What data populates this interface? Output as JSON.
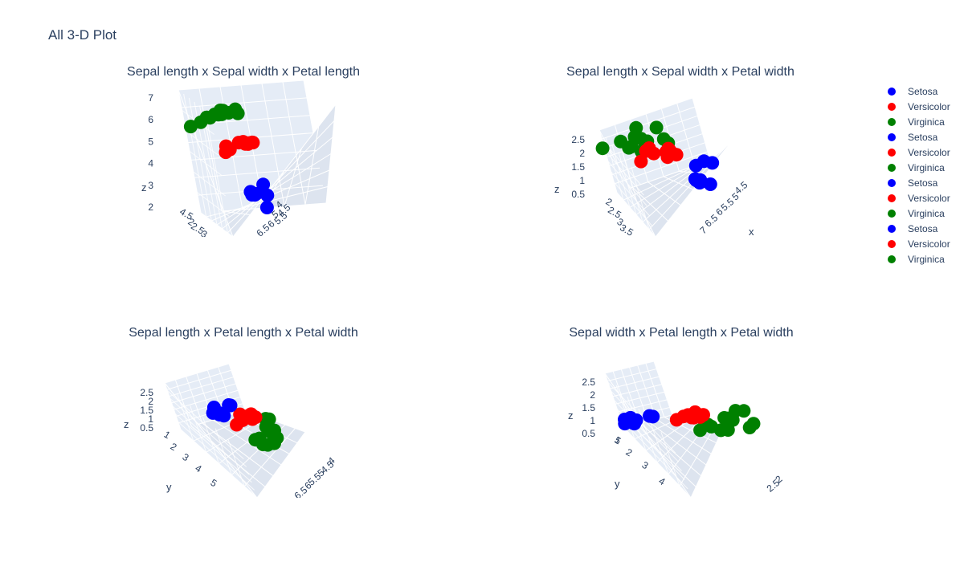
{
  "title": "All 3-D Plot",
  "colors": {
    "Setosa": "#0000ff",
    "Versicolor": "#ff0000",
    "Virginica": "#008000"
  },
  "legend": [
    {
      "label": "Setosa",
      "color": "#0000ff"
    },
    {
      "label": "Versicolor",
      "color": "#ff0000"
    },
    {
      "label": "Virginica",
      "color": "#008000"
    },
    {
      "label": "Setosa",
      "color": "#0000ff"
    },
    {
      "label": "Versicolor",
      "color": "#ff0000"
    },
    {
      "label": "Virginica",
      "color": "#008000"
    },
    {
      "label": "Setosa",
      "color": "#0000ff"
    },
    {
      "label": "Versicolor",
      "color": "#ff0000"
    },
    {
      "label": "Virginica",
      "color": "#008000"
    },
    {
      "label": "Setosa",
      "color": "#0000ff"
    },
    {
      "label": "Versicolor",
      "color": "#ff0000"
    },
    {
      "label": "Virginica",
      "color": "#008000"
    }
  ],
  "chart_data": [
    {
      "type": "scatter3d",
      "title": "Sepal length x Sepal width x Petal length",
      "axes": {
        "z_title": "z"
      },
      "z_ticks": [
        "7",
        "6",
        "5",
        "4",
        "3",
        "2"
      ],
      "y_ticks": [
        "4.5",
        "2",
        "2.5",
        "3"
      ],
      "x_ticks": [
        "4",
        "4.5",
        "5",
        "5.5",
        "6",
        "6.5"
      ],
      "series": [
        {
          "name": "Setosa",
          "x": [
            5.1,
            4.9,
            4.7,
            5.0,
            5.4,
            4.6,
            5.8,
            5.7
          ],
          "y": [
            3.5,
            3.0,
            3.2,
            3.6,
            3.9,
            3.4,
            4.0,
            4.4
          ],
          "z": [
            1.4,
            1.4,
            1.3,
            1.4,
            1.7,
            1.4,
            1.2,
            1.5
          ]
        },
        {
          "name": "Versicolor",
          "x": [
            7.0,
            6.4,
            6.9,
            5.5,
            6.5,
            5.7,
            6.3,
            4.9,
            6.6,
            5.2
          ],
          "y": [
            3.2,
            3.2,
            3.1,
            2.3,
            2.8,
            2.8,
            3.3,
            2.4,
            2.9,
            2.7
          ],
          "z": [
            4.7,
            4.5,
            4.9,
            4.0,
            4.6,
            4.5,
            4.7,
            3.3,
            4.6,
            3.9
          ]
        },
        {
          "name": "Virginica",
          "x": [
            6.3,
            5.8,
            7.1,
            6.3,
            6.5,
            7.6,
            4.9,
            7.3,
            6.7,
            7.2,
            7.7,
            7.9
          ],
          "y": [
            3.3,
            2.7,
            3.0,
            2.9,
            3.0,
            3.0,
            2.5,
            2.9,
            2.5,
            3.6,
            3.8,
            3.8
          ],
          "z": [
            6.0,
            5.1,
            5.9,
            5.6,
            5.8,
            6.6,
            4.5,
            6.3,
            5.8,
            6.1,
            6.7,
            6.4
          ]
        }
      ]
    },
    {
      "type": "scatter3d",
      "title": "Sepal length x Sepal width x Petal width",
      "axes": {
        "z_title": "z",
        "x_title": "x"
      },
      "z_ticks": [
        "2.5",
        "2",
        "1.5",
        "1",
        "0.5"
      ],
      "y_ticks": [
        "2",
        "2.5",
        "3",
        "3.5"
      ],
      "x_ticks": [
        "4.5",
        "5",
        "5.5",
        "6",
        "6.5",
        "7"
      ],
      "series": [
        {
          "name": "Setosa",
          "x": [
            5.1,
            4.9,
            4.7,
            5.0,
            5.4,
            4.6,
            5.8,
            5.7
          ],
          "y": [
            3.5,
            3.0,
            3.2,
            3.6,
            3.9,
            3.4,
            4.0,
            4.4
          ],
          "z": [
            0.2,
            0.2,
            0.2,
            0.2,
            0.4,
            0.3,
            0.2,
            0.4
          ]
        },
        {
          "name": "Versicolor",
          "x": [
            7.0,
            6.4,
            6.9,
            5.5,
            6.5,
            5.7,
            6.3,
            4.9,
            6.6,
            5.2
          ],
          "y": [
            3.2,
            3.2,
            3.1,
            2.3,
            2.8,
            2.8,
            3.3,
            2.4,
            2.9,
            2.7
          ],
          "z": [
            1.4,
            1.5,
            1.5,
            1.3,
            1.5,
            1.3,
            1.6,
            1.0,
            1.3,
            1.4
          ]
        },
        {
          "name": "Virginica",
          "x": [
            6.3,
            5.8,
            7.1,
            6.3,
            6.5,
            7.6,
            4.9,
            7.3,
            6.7,
            7.2,
            7.7,
            7.9
          ],
          "y": [
            3.3,
            2.7,
            3.0,
            2.9,
            3.0,
            3.0,
            2.5,
            2.9,
            2.5,
            3.6,
            3.8,
            3.8
          ],
          "z": [
            2.5,
            1.9,
            2.1,
            1.8,
            2.2,
            2.1,
            1.7,
            1.8,
            1.8,
            2.5,
            2.2,
            2.0
          ]
        }
      ]
    },
    {
      "type": "scatter3d",
      "title": "Sepal length x Petal length x Petal width",
      "axes": {
        "z_title": "z",
        "y_title": "y"
      },
      "z_ticks": [
        "2.5",
        "2",
        "1.5",
        "1",
        "0.5"
      ],
      "y_ticks": [
        "1",
        "2",
        "3",
        "4",
        "5"
      ],
      "x_ticks": [
        "4",
        "4.5",
        "5",
        "5.5",
        "6",
        "6.5"
      ],
      "series": [
        {
          "name": "Setosa",
          "x": [
            5.1,
            4.9,
            4.7,
            5.0,
            5.4,
            4.6,
            5.8,
            5.7
          ],
          "y": [
            1.4,
            1.4,
            1.3,
            1.4,
            1.7,
            1.4,
            1.2,
            1.5
          ],
          "z": [
            0.2,
            0.2,
            0.2,
            0.2,
            0.4,
            0.3,
            0.2,
            0.4
          ]
        },
        {
          "name": "Versicolor",
          "x": [
            7.0,
            6.4,
            6.9,
            5.5,
            6.5,
            5.7,
            6.3,
            4.9,
            6.6,
            5.2
          ],
          "y": [
            4.7,
            4.5,
            4.9,
            4.0,
            4.6,
            4.5,
            4.7,
            3.3,
            4.6,
            3.9
          ],
          "z": [
            1.4,
            1.5,
            1.5,
            1.3,
            1.5,
            1.3,
            1.6,
            1.0,
            1.3,
            1.4
          ]
        },
        {
          "name": "Virginica",
          "x": [
            6.3,
            5.8,
            7.1,
            6.3,
            6.5,
            7.6,
            4.9,
            7.3,
            6.7,
            7.2,
            7.7,
            7.9
          ],
          "y": [
            6.0,
            5.1,
            5.9,
            5.6,
            5.8,
            6.6,
            4.5,
            6.3,
            5.8,
            6.1,
            6.7,
            6.4
          ],
          "z": [
            2.5,
            1.9,
            2.1,
            1.8,
            2.2,
            2.1,
            1.7,
            1.8,
            1.8,
            2.5,
            2.2,
            2.0
          ]
        }
      ]
    },
    {
      "type": "scatter3d",
      "title": "Sepal width x Petal length x Petal width",
      "axes": {
        "z_title": "z",
        "y_title": "y"
      },
      "z_ticks": [
        "2.5",
        "2",
        "1.5",
        "1",
        "0.5"
      ],
      "y_ticks": [
        "1",
        "2",
        "3",
        "4",
        "5"
      ],
      "x_ticks": [
        "2",
        "2.5"
      ],
      "series": [
        {
          "name": "Setosa",
          "x": [
            3.5,
            3.0,
            3.2,
            3.6,
            3.9,
            3.4,
            4.0,
            4.4
          ],
          "y": [
            1.4,
            1.4,
            1.3,
            1.4,
            1.7,
            1.4,
            1.2,
            1.5
          ],
          "z": [
            0.2,
            0.2,
            0.2,
            0.2,
            0.4,
            0.3,
            0.2,
            0.4
          ]
        },
        {
          "name": "Versicolor",
          "x": [
            3.2,
            3.2,
            3.1,
            2.3,
            2.8,
            2.8,
            3.3,
            2.4,
            2.9,
            2.7
          ],
          "y": [
            4.7,
            4.5,
            4.9,
            4.0,
            4.6,
            4.5,
            4.7,
            3.3,
            4.6,
            3.9
          ],
          "z": [
            1.4,
            1.5,
            1.5,
            1.3,
            1.5,
            1.3,
            1.6,
            1.0,
            1.3,
            1.4
          ]
        },
        {
          "name": "Virginica",
          "x": [
            3.3,
            2.7,
            3.0,
            2.9,
            3.0,
            3.0,
            2.5,
            2.9,
            2.5,
            3.6,
            3.8,
            3.8
          ],
          "y": [
            6.0,
            5.1,
            5.9,
            5.6,
            5.8,
            6.6,
            4.5,
            6.3,
            5.8,
            6.1,
            6.7,
            6.4
          ],
          "z": [
            2.5,
            1.9,
            2.1,
            1.8,
            2.2,
            2.1,
            1.7,
            1.8,
            1.8,
            2.5,
            2.2,
            2.0
          ]
        }
      ]
    }
  ]
}
